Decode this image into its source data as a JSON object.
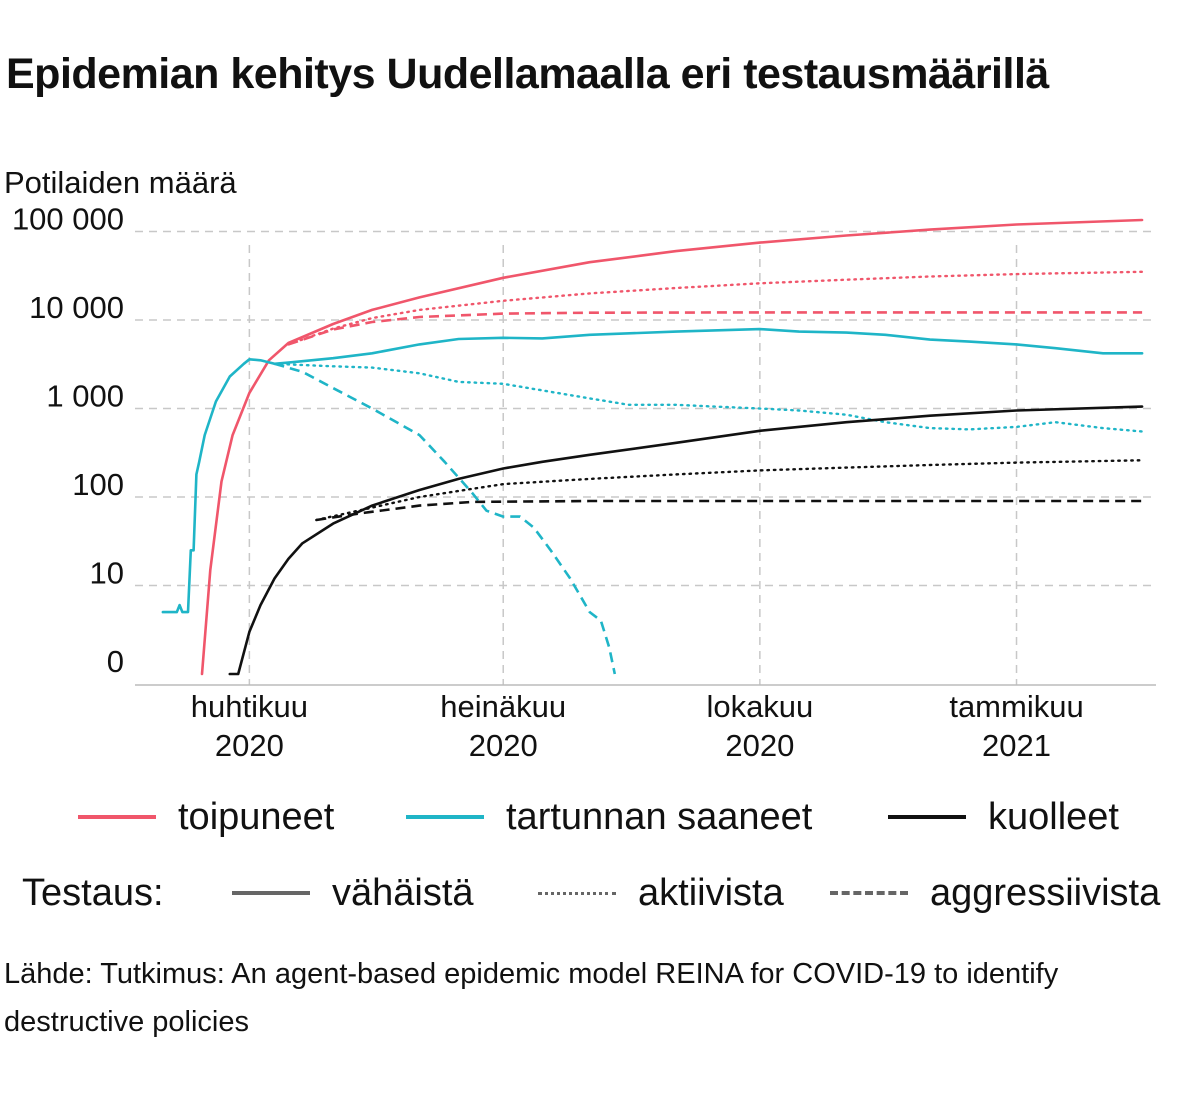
{
  "title": "Epidemian kehitys Uudellamaalla eri testausmäärillä",
  "source": "Lähde: Tutkimus: An agent-based epidemic model REINA for COVID-19 to identify destructive policies",
  "legend": {
    "groups": [
      {
        "name": "toipuneet",
        "color": "#f0566b"
      },
      {
        "name": "tartunnan saaneet",
        "color": "#1fb5c7"
      },
      {
        "name": "kuolleet",
        "color": "#111111"
      }
    ],
    "testing_title": "Testaus:",
    "testing": [
      {
        "name": "vähäistä",
        "style": "solid",
        "color": "#666666"
      },
      {
        "name": "aktiivista",
        "style": "dotted",
        "color": "#666666"
      },
      {
        "name": "aggressiivista",
        "style": "dashed",
        "color": "#666666"
      }
    ]
  },
  "chart_data": {
    "type": "line",
    "ylabel": "Potilaiden määrä",
    "y_scale": "log",
    "y_ticks": [
      {
        "value": 1,
        "label": "0"
      },
      {
        "value": 10,
        "label": "10"
      },
      {
        "value": 100,
        "label": "100"
      },
      {
        "value": 1000,
        "label": "1 000"
      },
      {
        "value": 10000,
        "label": "10 000"
      },
      {
        "value": 100000,
        "label": "100 000"
      }
    ],
    "x_range": [
      "2020-02-20",
      "2021-02-20"
    ],
    "x_ticks": [
      {
        "date": "2020-04-01",
        "label": [
          "huhtikuu",
          "2020"
        ]
      },
      {
        "date": "2020-07-01",
        "label": [
          "heinäkuu",
          "2020"
        ]
      },
      {
        "date": "2020-10-01",
        "label": [
          "lokakuu",
          "2020"
        ]
      },
      {
        "date": "2021-01-01",
        "label": [
          "tammikuu",
          "2021"
        ]
      }
    ],
    "grid": true,
    "legend_position": "bottom",
    "series": [
      {
        "group": "toipuneet",
        "testing": "vähäistä",
        "color": "#f0566b",
        "style": "solid",
        "points": [
          [
            "2020-03-15",
            1
          ],
          [
            "2020-03-18",
            15
          ],
          [
            "2020-03-22",
            150
          ],
          [
            "2020-03-26",
            500
          ],
          [
            "2020-04-01",
            1500
          ],
          [
            "2020-04-08",
            3500
          ],
          [
            "2020-04-15",
            5500
          ],
          [
            "2020-05-01",
            9000
          ],
          [
            "2020-05-15",
            13000
          ],
          [
            "2020-06-01",
            18000
          ],
          [
            "2020-07-01",
            30000
          ],
          [
            "2020-08-01",
            45000
          ],
          [
            "2020-09-01",
            60000
          ],
          [
            "2020-10-01",
            75000
          ],
          [
            "2020-11-01",
            90000
          ],
          [
            "2020-12-01",
            105000
          ],
          [
            "2021-01-01",
            120000
          ],
          [
            "2021-02-15",
            135000
          ]
        ]
      },
      {
        "group": "toipuneet",
        "testing": "aktiivista",
        "color": "#f0566b",
        "style": "dotted",
        "points": [
          [
            "2020-04-15",
            5300
          ],
          [
            "2020-05-01",
            8000
          ],
          [
            "2020-05-15",
            10500
          ],
          [
            "2020-06-01",
            13000
          ],
          [
            "2020-07-01",
            16500
          ],
          [
            "2020-08-01",
            20000
          ],
          [
            "2020-09-01",
            23000
          ],
          [
            "2020-10-01",
            26000
          ],
          [
            "2020-11-01",
            28500
          ],
          [
            "2020-12-01",
            31000
          ],
          [
            "2021-01-01",
            33000
          ],
          [
            "2021-02-15",
            35000
          ]
        ]
      },
      {
        "group": "toipuneet",
        "testing": "aggressiivista",
        "color": "#f0566b",
        "style": "dashed",
        "points": [
          [
            "2020-04-15",
            5300
          ],
          [
            "2020-05-01",
            7800
          ],
          [
            "2020-05-15",
            9500
          ],
          [
            "2020-06-01",
            10800
          ],
          [
            "2020-07-01",
            11800
          ],
          [
            "2020-08-01",
            12100
          ],
          [
            "2020-10-01",
            12200
          ],
          [
            "2021-02-15",
            12200
          ]
        ]
      },
      {
        "group": "tartunnan saaneet",
        "testing": "vähäistä",
        "color": "#1fb5c7",
        "style": "solid",
        "points": [
          [
            "2020-03-01",
            5
          ],
          [
            "2020-03-06",
            5
          ],
          [
            "2020-03-07",
            6
          ],
          [
            "2020-03-08",
            5
          ],
          [
            "2020-03-10",
            5
          ],
          [
            "2020-03-11",
            25
          ],
          [
            "2020-03-12",
            25
          ],
          [
            "2020-03-13",
            180
          ],
          [
            "2020-03-14",
            250
          ],
          [
            "2020-03-16",
            500
          ],
          [
            "2020-03-20",
            1200
          ],
          [
            "2020-03-25",
            2300
          ],
          [
            "2020-03-30",
            3200
          ],
          [
            "2020-04-01",
            3600
          ],
          [
            "2020-04-05",
            3500
          ],
          [
            "2020-04-10",
            3200
          ],
          [
            "2020-04-15",
            3300
          ],
          [
            "2020-05-01",
            3700
          ],
          [
            "2020-05-15",
            4200
          ],
          [
            "2020-06-01",
            5300
          ],
          [
            "2020-06-15",
            6100
          ],
          [
            "2020-07-01",
            6300
          ],
          [
            "2020-07-15",
            6200
          ],
          [
            "2020-08-01",
            6800
          ],
          [
            "2020-09-01",
            7400
          ],
          [
            "2020-10-01",
            7900
          ],
          [
            "2020-10-15",
            7400
          ],
          [
            "2020-11-01",
            7200
          ],
          [
            "2020-11-15",
            6800
          ],
          [
            "2020-12-01",
            6000
          ],
          [
            "2020-12-15",
            5700
          ],
          [
            "2021-01-01",
            5300
          ],
          [
            "2021-01-15",
            4800
          ],
          [
            "2021-02-01",
            4200
          ],
          [
            "2021-02-15",
            4200
          ]
        ]
      },
      {
        "group": "tartunnan saaneet",
        "testing": "aktiivista",
        "color": "#1fb5c7",
        "style": "dotted",
        "points": [
          [
            "2020-04-10",
            3200
          ],
          [
            "2020-05-01",
            3000
          ],
          [
            "2020-05-15",
            2900
          ],
          [
            "2020-06-01",
            2500
          ],
          [
            "2020-06-15",
            2000
          ],
          [
            "2020-07-01",
            1900
          ],
          [
            "2020-07-15",
            1600
          ],
          [
            "2020-08-01",
            1300
          ],
          [
            "2020-08-15",
            1100
          ],
          [
            "2020-09-01",
            1100
          ],
          [
            "2020-09-15",
            1050
          ],
          [
            "2020-10-01",
            1000
          ],
          [
            "2020-10-15",
            950
          ],
          [
            "2020-11-01",
            850
          ],
          [
            "2020-11-15",
            700
          ],
          [
            "2020-12-01",
            600
          ],
          [
            "2020-12-15",
            580
          ],
          [
            "2021-01-01",
            620
          ],
          [
            "2021-01-15",
            700
          ],
          [
            "2021-02-01",
            600
          ],
          [
            "2021-02-15",
            550
          ]
        ]
      },
      {
        "group": "tartunnan saaneet",
        "testing": "aggressiivista",
        "color": "#1fb5c7",
        "style": "dashed",
        "points": [
          [
            "2020-04-10",
            3200
          ],
          [
            "2020-04-20",
            2600
          ],
          [
            "2020-05-01",
            1700
          ],
          [
            "2020-05-15",
            1000
          ],
          [
            "2020-06-01",
            500
          ],
          [
            "2020-06-10",
            250
          ],
          [
            "2020-06-20",
            110
          ],
          [
            "2020-06-25",
            70
          ],
          [
            "2020-07-01",
            60
          ],
          [
            "2020-07-07",
            60
          ],
          [
            "2020-07-12",
            45
          ],
          [
            "2020-07-18",
            25
          ],
          [
            "2020-07-25",
            12
          ],
          [
            "2020-08-01",
            5
          ],
          [
            "2020-08-05",
            4
          ],
          [
            "2020-08-08",
            2
          ],
          [
            "2020-08-10",
            1
          ]
        ]
      },
      {
        "group": "kuolleet",
        "testing": "vähäistä",
        "color": "#111111",
        "style": "solid",
        "points": [
          [
            "2020-03-25",
            1
          ],
          [
            "2020-03-28",
            1
          ],
          [
            "2020-04-01",
            3
          ],
          [
            "2020-04-05",
            6
          ],
          [
            "2020-04-10",
            12
          ],
          [
            "2020-04-15",
            20
          ],
          [
            "2020-04-20",
            30
          ],
          [
            "2020-05-01",
            50
          ],
          [
            "2020-05-15",
            80
          ],
          [
            "2020-06-01",
            120
          ],
          [
            "2020-06-15",
            160
          ],
          [
            "2020-07-01",
            210
          ],
          [
            "2020-07-15",
            250
          ],
          [
            "2020-08-01",
            300
          ],
          [
            "2020-09-01",
            410
          ],
          [
            "2020-10-01",
            560
          ],
          [
            "2020-11-01",
            700
          ],
          [
            "2020-12-01",
            830
          ],
          [
            "2021-01-01",
            950
          ],
          [
            "2021-02-15",
            1050
          ]
        ]
      },
      {
        "group": "kuolleet",
        "testing": "aktiivista",
        "color": "#111111",
        "style": "dotted",
        "points": [
          [
            "2020-04-25",
            55
          ],
          [
            "2020-05-10",
            70
          ],
          [
            "2020-06-01",
            100
          ],
          [
            "2020-07-01",
            140
          ],
          [
            "2020-08-01",
            160
          ],
          [
            "2020-09-01",
            180
          ],
          [
            "2020-10-01",
            200
          ],
          [
            "2020-11-01",
            215
          ],
          [
            "2020-12-01",
            230
          ],
          [
            "2021-01-01",
            245
          ],
          [
            "2021-02-15",
            260
          ]
        ]
      },
      {
        "group": "kuolleet",
        "testing": "aggressiivista",
        "color": "#111111",
        "style": "dashed",
        "points": [
          [
            "2020-04-25",
            55
          ],
          [
            "2020-05-10",
            65
          ],
          [
            "2020-06-01",
            80
          ],
          [
            "2020-06-20",
            88
          ],
          [
            "2020-08-01",
            90
          ],
          [
            "2021-02-15",
            90
          ]
        ]
      }
    ]
  }
}
